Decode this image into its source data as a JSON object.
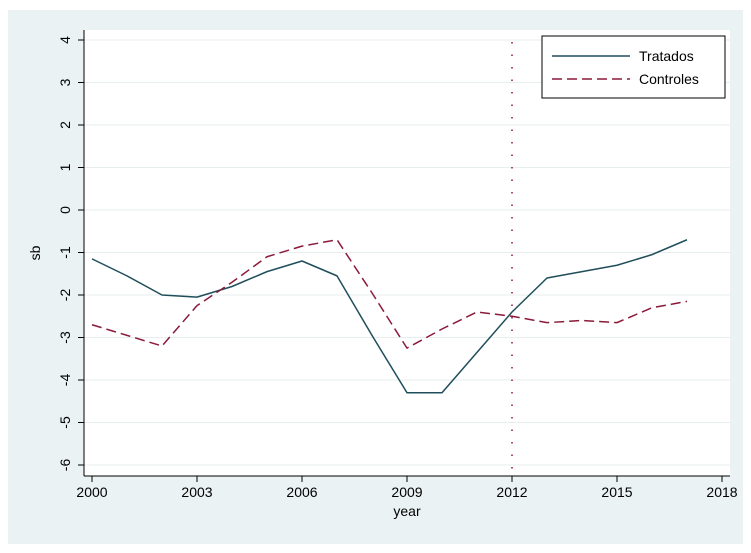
{
  "chart_data": {
    "type": "line",
    "title": "",
    "xlabel": "year",
    "ylabel": "sb",
    "xlim": [
      2000,
      2018
    ],
    "ylim": [
      -6,
      4
    ],
    "x_ticks": [
      2000,
      2003,
      2006,
      2009,
      2012,
      2015,
      2018
    ],
    "y_ticks": [
      4,
      3,
      2,
      1,
      0,
      -1,
      -2,
      -3,
      -4,
      -5,
      -6
    ],
    "grid": true,
    "legend": {
      "position": "top-right",
      "entries": [
        "Tratados",
        "Controles"
      ]
    },
    "reference_lines": [
      {
        "axis": "x",
        "value": 2012,
        "style": "dotted",
        "color": "#8b1a3a"
      }
    ],
    "x": [
      2000,
      2001,
      2002,
      2003,
      2004,
      2005,
      2006,
      2007,
      2008,
      2009,
      2010,
      2011,
      2012,
      2013,
      2014,
      2015,
      2016,
      2017
    ],
    "series": [
      {
        "name": "Tratados",
        "color": "#1f4e5a",
        "style": "solid",
        "values": [
          -1.15,
          -1.55,
          -2.0,
          -2.05,
          -1.8,
          -1.45,
          -1.2,
          -1.55,
          -2.95,
          -4.3,
          -4.3,
          -3.35,
          -2.4,
          -1.6,
          -1.45,
          -1.3,
          -1.05,
          -0.7
        ]
      },
      {
        "name": "Controles",
        "color": "#8b1a3a",
        "style": "dashed",
        "values": [
          -2.7,
          -2.95,
          -3.2,
          -2.25,
          -1.7,
          -1.1,
          -0.85,
          -0.7,
          -1.95,
          -3.25,
          -2.8,
          -2.4,
          -2.5,
          -2.65,
          -2.6,
          -2.65,
          -2.3,
          -2.15
        ]
      }
    ]
  }
}
